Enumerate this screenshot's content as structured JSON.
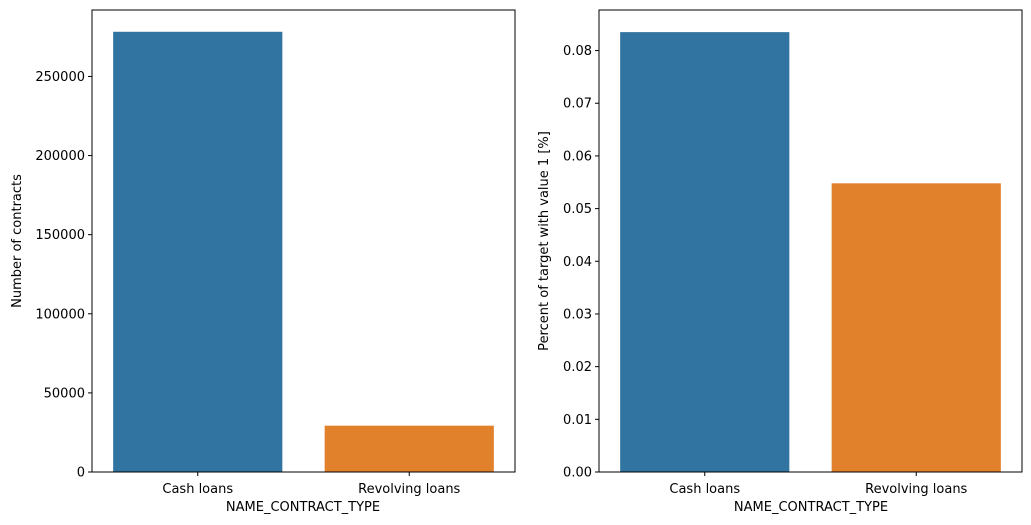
{
  "chart_data": [
    {
      "type": "bar",
      "categories": [
        "Cash loans",
        "Revolving loans"
      ],
      "values": [
        278232,
        29279
      ],
      "colors": [
        "#3274a1",
        "#e1812c"
      ],
      "title": "",
      "xlabel": "NAME_CONTRACT_TYPE",
      "ylabel": "Number of contracts",
      "ylim": [
        0,
        292000
      ],
      "yticks": [
        0,
        50000,
        100000,
        150000,
        200000,
        250000
      ],
      "ytick_labels": [
        "0",
        "50000",
        "100000",
        "150000",
        "200000",
        "250000"
      ],
      "grid": false
    },
    {
      "type": "bar",
      "categories": [
        "Cash loans",
        "Revolving loans"
      ],
      "values": [
        0.0835,
        0.0548
      ],
      "colors": [
        "#3274a1",
        "#e1812c"
      ],
      "title": "",
      "xlabel": "NAME_CONTRACT_TYPE",
      "ylabel": "Percent of target with value 1 [%]",
      "ylim": [
        0,
        0.0877
      ],
      "yticks": [
        0.0,
        0.01,
        0.02,
        0.03,
        0.04,
        0.05,
        0.06,
        0.07,
        0.08
      ],
      "ytick_labels": [
        "0.00",
        "0.01",
        "0.02",
        "0.03",
        "0.04",
        "0.05",
        "0.06",
        "0.07",
        "0.08"
      ],
      "grid": false
    }
  ]
}
